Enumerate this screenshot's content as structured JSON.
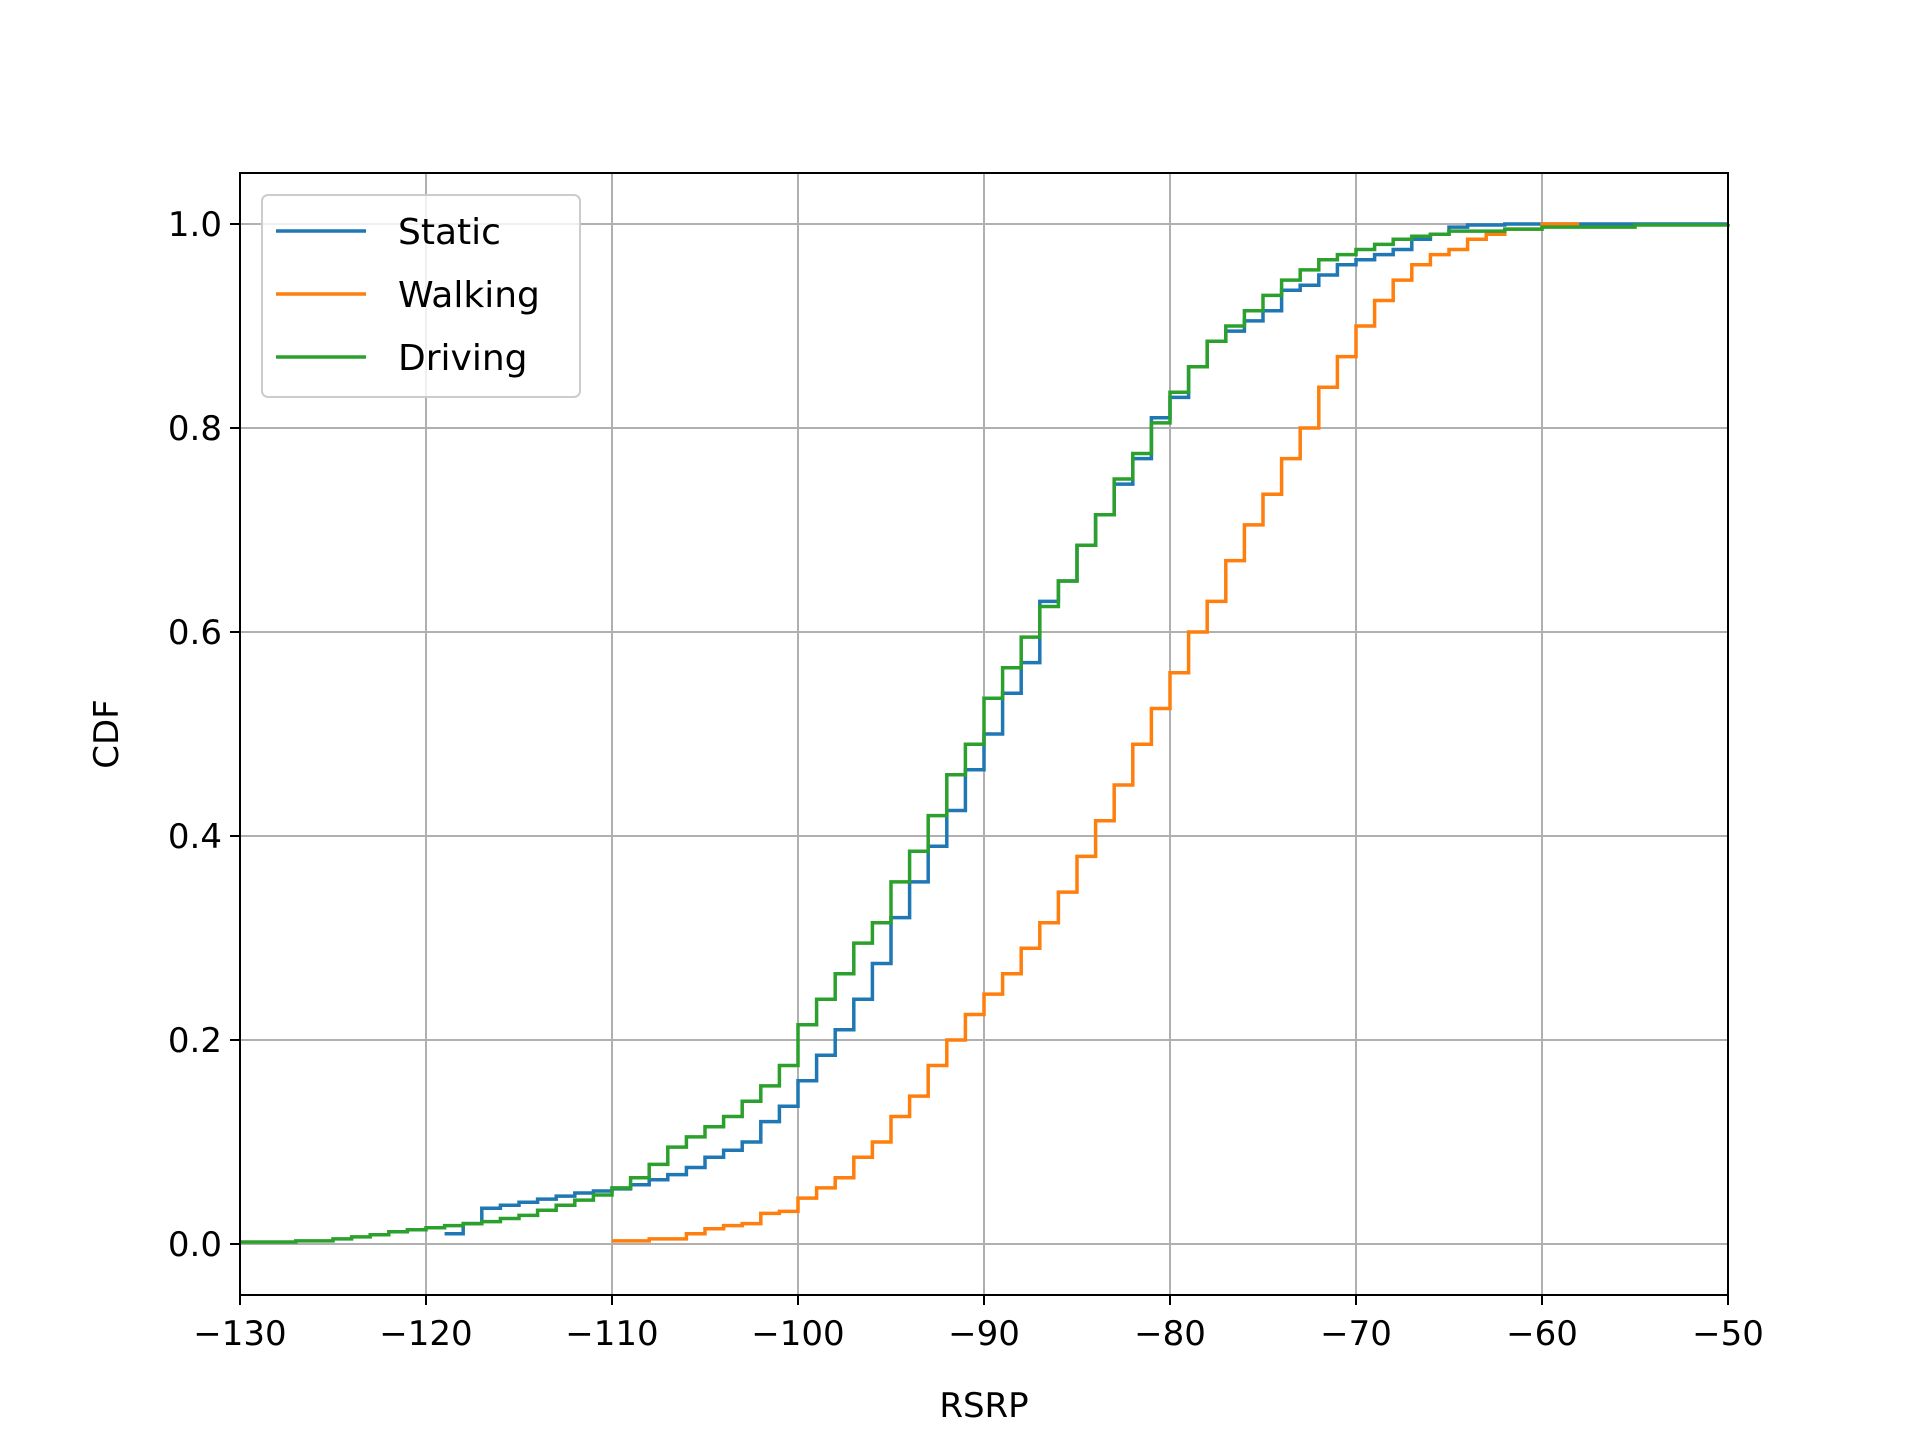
{
  "chart_data": {
    "type": "line",
    "title": "",
    "xlabel": "RSRP",
    "ylabel": "CDF",
    "xlim": [
      -130,
      -50
    ],
    "ylim": [
      -0.05,
      1.05
    ],
    "x_ticks": [
      -130,
      -120,
      -110,
      -100,
      -90,
      -80,
      -70,
      -60,
      -50
    ],
    "x_tick_labels": [
      "−130",
      "−120",
      "−110",
      "−100",
      "−90",
      "−80",
      "−70",
      "−60",
      "−50"
    ],
    "y_ticks": [
      0.0,
      0.2,
      0.4,
      0.6,
      0.8,
      1.0
    ],
    "y_tick_labels": [
      "0.0",
      "0.2",
      "0.4",
      "0.6",
      "0.8",
      "1.0"
    ],
    "grid": true,
    "legend_position": "top-left",
    "series": [
      {
        "name": "Static",
        "color": "#1f77b4",
        "step": true,
        "x": [
          -119,
          -118,
          -117,
          -116,
          -115,
          -114,
          -113,
          -112,
          -111,
          -110,
          -109,
          -108,
          -107,
          -106,
          -105,
          -104,
          -103,
          -102,
          -101,
          -100,
          -99,
          -98,
          -97,
          -96,
          -95,
          -94,
          -93,
          -92,
          -91,
          -90,
          -89,
          -88,
          -87,
          -86,
          -85,
          -84,
          -83,
          -82,
          -81,
          -80,
          -79,
          -78,
          -77,
          -76,
          -75,
          -74,
          -73,
          -72,
          -71,
          -70,
          -69,
          -68,
          -67,
          -66,
          -65,
          -64,
          -63,
          -62,
          -60,
          -58,
          -55,
          -50
        ],
        "y": [
          0.01,
          0.02,
          0.035,
          0.038,
          0.041,
          0.044,
          0.047,
          0.05,
          0.052,
          0.054,
          0.058,
          0.063,
          0.068,
          0.075,
          0.085,
          0.092,
          0.1,
          0.12,
          0.135,
          0.16,
          0.185,
          0.21,
          0.24,
          0.275,
          0.32,
          0.355,
          0.39,
          0.425,
          0.465,
          0.5,
          0.54,
          0.57,
          0.63,
          0.65,
          0.685,
          0.715,
          0.745,
          0.77,
          0.81,
          0.83,
          0.86,
          0.885,
          0.895,
          0.905,
          0.915,
          0.935,
          0.94,
          0.95,
          0.96,
          0.965,
          0.97,
          0.975,
          0.985,
          0.99,
          0.997,
          0.999,
          0.999,
          1.0,
          1.0,
          1.0,
          1.0,
          1.0
        ]
      },
      {
        "name": "Walking",
        "color": "#ff7f0e",
        "step": true,
        "x": [
          -110,
          -108,
          -106,
          -105,
          -104,
          -103,
          -102,
          -101,
          -100,
          -99,
          -98,
          -97,
          -96,
          -95,
          -94,
          -93,
          -92,
          -91,
          -90,
          -89,
          -88,
          -87,
          -86,
          -85,
          -84,
          -83,
          -82,
          -81,
          -80,
          -79,
          -78,
          -77,
          -76,
          -75,
          -74,
          -73,
          -72,
          -71,
          -70,
          -69,
          -68,
          -67,
          -66,
          -65,
          -64,
          -63,
          -62,
          -60,
          -58
        ],
        "y": [
          0.003,
          0.005,
          0.01,
          0.015,
          0.018,
          0.02,
          0.03,
          0.032,
          0.045,
          0.055,
          0.065,
          0.085,
          0.1,
          0.125,
          0.145,
          0.175,
          0.2,
          0.225,
          0.245,
          0.265,
          0.29,
          0.315,
          0.345,
          0.38,
          0.415,
          0.45,
          0.49,
          0.525,
          0.56,
          0.6,
          0.63,
          0.67,
          0.705,
          0.735,
          0.77,
          0.8,
          0.84,
          0.87,
          0.9,
          0.925,
          0.945,
          0.96,
          0.97,
          0.975,
          0.985,
          0.99,
          0.995,
          1.0,
          1.0
        ]
      },
      {
        "name": "Driving",
        "color": "#2ca02c",
        "step": true,
        "x": [
          -130,
          -127,
          -125,
          -124,
          -123,
          -122,
          -121,
          -120,
          -119,
          -118,
          -117,
          -116,
          -115,
          -114,
          -113,
          -112,
          -111,
          -110,
          -109,
          -108,
          -107,
          -106,
          -105,
          -104,
          -103,
          -102,
          -101,
          -100,
          -99,
          -98,
          -97,
          -96,
          -95,
          -94,
          -93,
          -92,
          -91,
          -90,
          -89,
          -88,
          -87,
          -86,
          -85,
          -84,
          -83,
          -82,
          -81,
          -80,
          -79,
          -78,
          -77,
          -76,
          -75,
          -74,
          -73,
          -72,
          -71,
          -70,
          -69,
          -68,
          -67,
          -66,
          -65,
          -62,
          -60,
          -55,
          -50
        ],
        "y": [
          0.002,
          0.003,
          0.005,
          0.007,
          0.009,
          0.012,
          0.014,
          0.016,
          0.018,
          0.02,
          0.022,
          0.025,
          0.028,
          0.033,
          0.038,
          0.043,
          0.048,
          0.055,
          0.065,
          0.078,
          0.095,
          0.105,
          0.115,
          0.125,
          0.14,
          0.155,
          0.175,
          0.215,
          0.24,
          0.265,
          0.295,
          0.315,
          0.355,
          0.385,
          0.42,
          0.46,
          0.49,
          0.535,
          0.565,
          0.595,
          0.625,
          0.65,
          0.685,
          0.715,
          0.75,
          0.775,
          0.805,
          0.835,
          0.86,
          0.885,
          0.9,
          0.915,
          0.93,
          0.945,
          0.955,
          0.965,
          0.97,
          0.975,
          0.98,
          0.985,
          0.988,
          0.99,
          0.993,
          0.995,
          0.997,
          0.999,
          1.0
        ]
      }
    ]
  }
}
